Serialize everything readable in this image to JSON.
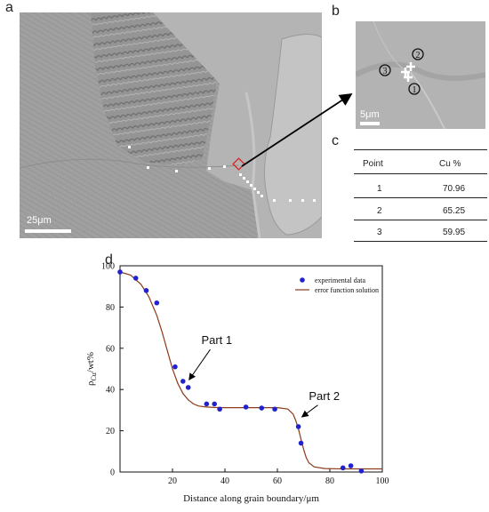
{
  "panels": {
    "a": "a",
    "b": "b",
    "c": "c",
    "d": "d"
  },
  "scalebars": {
    "a": "25μm",
    "b": "5μm"
  },
  "markers_b": [
    "1",
    "2",
    "3"
  ],
  "table": {
    "headers": [
      "Point",
      "Cu %"
    ],
    "rows": [
      [
        "1",
        "70.96"
      ],
      [
        "2",
        "65.25"
      ],
      [
        "3",
        "59.95"
      ]
    ]
  },
  "chart_data": {
    "type": "scatter",
    "title": "",
    "xlabel": "Distance along grain boundary/μm",
    "ylabel": "ρCu/wt%",
    "ylabel_main": "ρ",
    "ylabel_sub": "Cu",
    "ylabel_rest": "/wt%",
    "xlim": [
      0,
      100
    ],
    "ylim": [
      0,
      100
    ],
    "xticks": [
      20,
      40,
      60,
      80,
      100
    ],
    "yticks": [
      0,
      20,
      40,
      60,
      80,
      100
    ],
    "legend": {
      "position": "top-right",
      "entries": [
        "experimental data",
        "error function solution"
      ]
    },
    "series": [
      {
        "name": "experimental data",
        "kind": "points",
        "color": "#2222cc",
        "x": [
          0,
          6,
          10,
          14,
          21,
          24,
          26,
          33,
          36,
          38,
          48,
          54,
          59,
          68,
          69,
          85,
          88,
          92
        ],
        "y": [
          97,
          94,
          88,
          82,
          51,
          44,
          41,
          33,
          33,
          30.5,
          31.5,
          31,
          30.5,
          22,
          14,
          2,
          3,
          0.5
        ]
      },
      {
        "name": "error function solution",
        "kind": "line",
        "color": "#8b3a1a",
        "x": [
          0,
          4,
          8,
          11,
          14,
          16,
          18,
          20,
          22,
          24,
          26,
          28,
          30,
          33,
          36,
          40,
          50,
          60,
          64,
          66,
          67,
          68,
          69,
          70,
          71,
          72,
          74,
          78,
          85,
          100
        ],
        "y": [
          97,
          95.5,
          91,
          85,
          76,
          68,
          59,
          50,
          43,
          38,
          35,
          33,
          32,
          31.5,
          31.3,
          31.2,
          31.2,
          31.2,
          30.5,
          28,
          25,
          21,
          16,
          11,
          7,
          4.5,
          2.5,
          1.7,
          1.5,
          1.5
        ]
      }
    ],
    "annotations": [
      {
        "text": "Part 1",
        "x": 31,
        "y": 62,
        "arrow_to": [
          25,
          43
        ]
      },
      {
        "text": "Part 2",
        "x": 72,
        "y": 35,
        "arrow_to": [
          68,
          25
        ]
      }
    ]
  }
}
